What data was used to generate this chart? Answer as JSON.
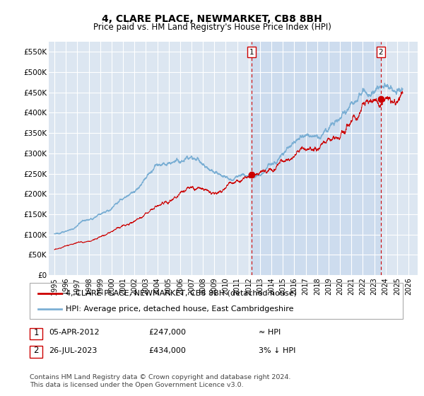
{
  "title": "4, CLARE PLACE, NEWMARKET, CB8 8BH",
  "subtitle": "Price paid vs. HM Land Registry's House Price Index (HPI)",
  "ylim": [
    0,
    575000
  ],
  "yticks": [
    0,
    50000,
    100000,
    150000,
    200000,
    250000,
    300000,
    350000,
    400000,
    450000,
    500000,
    550000
  ],
  "ytick_labels": [
    "£0",
    "£50K",
    "£100K",
    "£150K",
    "£200K",
    "£250K",
    "£300K",
    "£350K",
    "£400K",
    "£450K",
    "£500K",
    "£550K"
  ],
  "background_color": "#ffffff",
  "plot_bg_color": "#dce6f1",
  "grid_color": "#ffffff",
  "shade_color": "#c8d8ee",
  "hpi_line_color": "#7bafd4",
  "price_line_color": "#cc0000",
  "sale1_year": 2012.27,
  "sale1_price": 247000,
  "sale2_year": 2023.57,
  "sale2_price": 434000,
  "vline_color": "#cc0000",
  "marker_color": "#cc0000",
  "legend_label1": "4, CLARE PLACE, NEWMARKET, CB8 8BH (detached house)",
  "legend_label2": "HPI: Average price, detached house, East Cambridgeshire",
  "table_row1": [
    "1",
    "05-APR-2012",
    "£247,000",
    "≈ HPI"
  ],
  "table_row2": [
    "2",
    "26-JUL-2023",
    "£434,000",
    "3% ↓ HPI"
  ],
  "footer": "Contains HM Land Registry data © Crown copyright and database right 2024.\nThis data is licensed under the Open Government Licence v3.0.",
  "title_fontsize": 10,
  "subtitle_fontsize": 8.5,
  "tick_fontsize": 7.5,
  "legend_fontsize": 8
}
